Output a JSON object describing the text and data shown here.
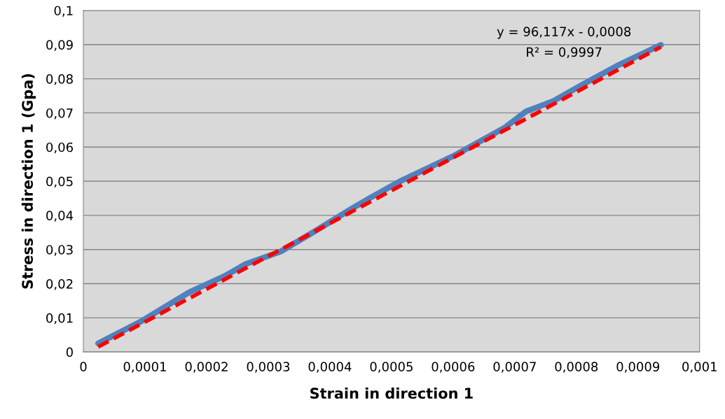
{
  "chart_data": {
    "type": "line",
    "xlabel": "Strain in direction 1",
    "ylabel": "Stress in direction 1 (Gpa)",
    "xlim": [
      0,
      0.001
    ],
    "ylim": [
      0,
      0.1
    ],
    "xticks": [
      0,
      {
        "value": 0.0001,
        "label": "0,0001"
      },
      {
        "value": 0.0002,
        "label": "0,0002"
      },
      {
        "value": 0.0003,
        "label": "0,0003"
      },
      {
        "value": 0.0004,
        "label": "0,0004"
      },
      {
        "value": 0.0005,
        "label": "0,0005"
      },
      {
        "value": 0.0006,
        "label": "0,0006"
      },
      {
        "value": 0.0007,
        "label": "0,0007"
      },
      {
        "value": 0.0008,
        "label": "0,0008"
      },
      {
        "value": 0.0009,
        "label": "0,0009"
      },
      {
        "value": 0.001,
        "label": "0,001"
      }
    ],
    "yticks": [
      0,
      {
        "value": 0.01,
        "label": "0,01"
      },
      {
        "value": 0.02,
        "label": "0,02"
      },
      {
        "value": 0.03,
        "label": "0,03"
      },
      {
        "value": 0.04,
        "label": "0,04"
      },
      {
        "value": 0.05,
        "label": "0,05"
      },
      {
        "value": 0.06,
        "label": "0,06"
      },
      {
        "value": 0.07,
        "label": "0,07"
      },
      {
        "value": 0.08,
        "label": "0,08"
      },
      {
        "value": 0.09,
        "label": "0,09"
      },
      {
        "value": 0.1,
        "label": "0,1"
      }
    ],
    "grid": "y",
    "legend": false,
    "series": [
      {
        "color": "#4f81bd",
        "line_style": "solid",
        "x": [
          2.4e-05,
          9.2e-05,
          0.000172,
          0.000229,
          0.000263,
          0.00032,
          0.000377,
          0.000433,
          0.000468,
          0.000513,
          0.000604,
          0.000684,
          0.000718,
          0.000763,
          0.000809,
          0.000866,
          0.000937
        ],
        "values": [
          0.0025,
          0.0088,
          0.0175,
          0.0222,
          0.0257,
          0.0294,
          0.0355,
          0.0417,
          0.0454,
          0.0499,
          0.0577,
          0.0657,
          0.0704,
          0.0735,
          0.0782,
          0.0838,
          0.0899
        ]
      },
      {
        "color": "#ff0000",
        "line_style": "dashed",
        "x": [
          2.4e-05,
          0.000937
        ],
        "values": [
          0.0015,
          0.0893
        ]
      }
    ],
    "annotations": [
      "y = 96,117x - 0,0008",
      "R² = 0,9997"
    ]
  }
}
